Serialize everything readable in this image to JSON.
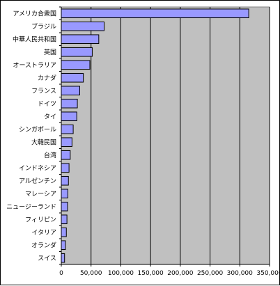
{
  "chart_data": {
    "type": "bar",
    "orientation": "horizontal",
    "categories": [
      "アメリカ合衆国",
      "ブラジル",
      "中華人民共和国",
      "英国",
      "オーストラリア",
      "カナダ",
      "フランス",
      "ドイツ",
      "タイ",
      "シンガポール",
      "大韓民国",
      "台湾",
      "インドネシア",
      "アルゼンチン",
      "マレーシア",
      "ニュージーランド",
      "フィリピン",
      "イタリア",
      "オランダ",
      "スイス"
    ],
    "values": [
      315000,
      72000,
      63000,
      52000,
      48000,
      37000,
      31000,
      27000,
      26000,
      20000,
      18000,
      15000,
      13000,
      12000,
      11000,
      10500,
      9500,
      8500,
      7000,
      5500
    ],
    "xlim": [
      0,
      350000
    ],
    "xticks": [
      0,
      50000,
      100000,
      150000,
      200000,
      250000,
      300000,
      350000
    ],
    "xtick_labels": [
      "0",
      "50,000",
      "100,000",
      "150,000",
      "200,000",
      "250,000",
      "300,000",
      "350,000"
    ],
    "grid": true,
    "colors": {
      "bar_fill": "#9999ff",
      "bar_stroke": "#000000",
      "plot_bg": "#c0c0c0",
      "gridline": "#000000"
    }
  }
}
